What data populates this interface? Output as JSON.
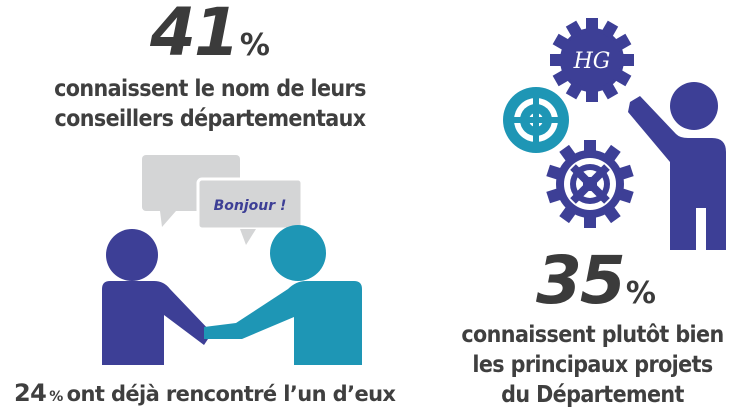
{
  "left": {
    "percent_value": "41",
    "percent_sign": "%",
    "caption_line1": "connaissent le nom de leurs",
    "caption_line2": "conseillers départementaux",
    "bubble_text": "Bonjour !",
    "bottom_value": "24",
    "bottom_sign": "%",
    "bottom_text": "ont déjà rencontré l’un d’eux"
  },
  "right": {
    "percent_value": "35",
    "percent_sign": "%",
    "caption_line1": "connaissent plutôt bien",
    "caption_line2": "les principaux projets",
    "caption_line3": "du Département",
    "gear_monogram": "HG"
  },
  "colors": {
    "text_dark": "#3b3b3b",
    "navy": "#3d3f96",
    "teal": "#1e96b5",
    "bubble_gray": "#d4d5d6"
  }
}
